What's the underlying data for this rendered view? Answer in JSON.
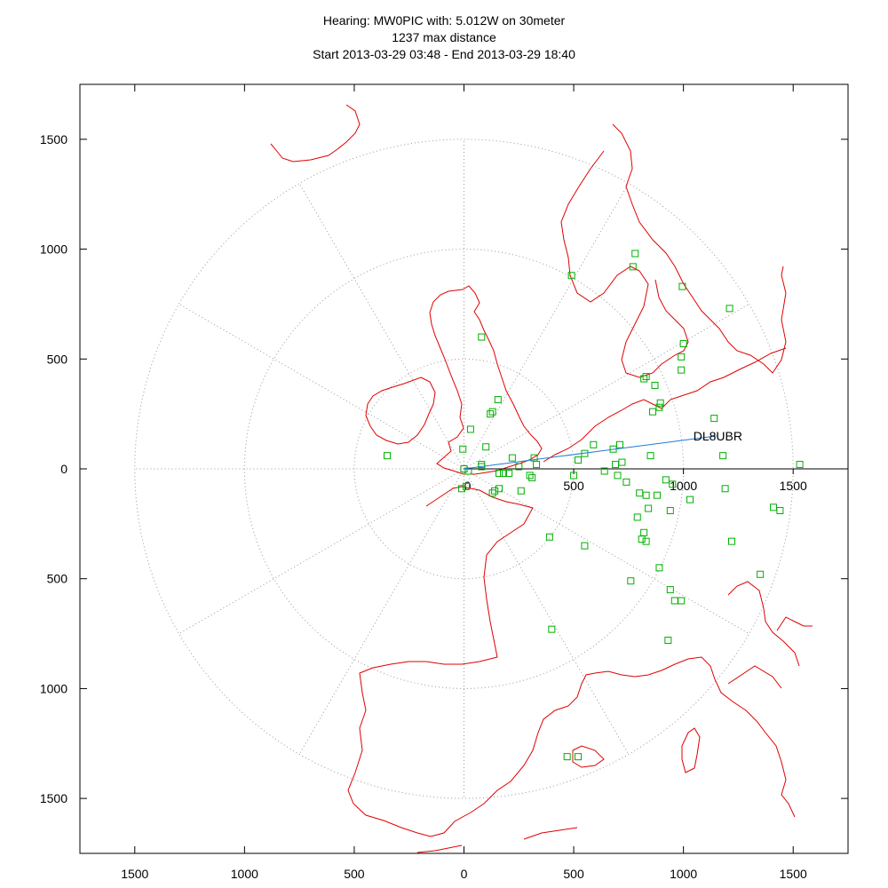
{
  "chart_data": {
    "type": "scatter",
    "title_lines": [
      "Hearing: MW0PIC with: 5.012W on 30meter",
      "1237 max distance",
      "Start 2013-03-29 03:48 - End 2013-03-29 18:40"
    ],
    "xlim": [
      -1750,
      1750
    ],
    "ylim": [
      -1750,
      1750
    ],
    "x_ticks": [
      {
        "value": -1500,
        "label": "1500"
      },
      {
        "value": -1000,
        "label": "1000"
      },
      {
        "value": -500,
        "label": "500"
      },
      {
        "value": 0,
        "label": "0"
      },
      {
        "value": 500,
        "label": "500"
      },
      {
        "value": 1000,
        "label": "1000"
      },
      {
        "value": 1500,
        "label": "1500"
      }
    ],
    "y_ticks": [
      {
        "value": 1500,
        "label": "1500"
      },
      {
        "value": 1000,
        "label": "1000"
      },
      {
        "value": 500,
        "label": "500"
      },
      {
        "value": 0,
        "label": "0"
      },
      {
        "value": -500,
        "label": "500"
      },
      {
        "value": -1000,
        "label": "1000"
      },
      {
        "value": -1500,
        "label": "1500"
      }
    ],
    "axis_ticks": [
      {
        "value": 500,
        "label": "500"
      },
      {
        "value": 1000,
        "label": "1000"
      },
      {
        "value": 1500,
        "label": "1500"
      }
    ],
    "origin_label": "0",
    "range_rings": [
      500,
      1000,
      1500
    ],
    "radial_angles_deg": [
      30,
      60,
      90,
      120,
      150,
      180,
      210,
      240,
      270,
      300,
      330
    ],
    "highlight": {
      "label": "DL8UBR",
      "x": 1150,
      "y": 150
    },
    "spots": [
      [
        0,
        0
      ],
      [
        80,
        10
      ],
      [
        20,
        -10
      ],
      [
        80,
        20
      ],
      [
        -10,
        -90
      ],
      [
        -5,
        90
      ],
      [
        100,
        100
      ],
      [
        10,
        -80
      ],
      [
        30,
        180
      ],
      [
        -350,
        60
      ],
      [
        120,
        250
      ],
      [
        130,
        260
      ],
      [
        155,
        315
      ],
      [
        80,
        600
      ],
      [
        130,
        -110
      ],
      [
        140,
        -100
      ],
      [
        160,
        -90
      ],
      [
        180,
        -20
      ],
      [
        160,
        -20
      ],
      [
        205,
        -20
      ],
      [
        220,
        50
      ],
      [
        250,
        10
      ],
      [
        260,
        -100
      ],
      [
        300,
        -30
      ],
      [
        310,
        -40
      ],
      [
        320,
        50
      ],
      [
        330,
        20
      ],
      [
        390,
        -310
      ],
      [
        400,
        -730
      ],
      [
        490,
        880
      ],
      [
        500,
        -30
      ],
      [
        520,
        40
      ],
      [
        550,
        70
      ],
      [
        550,
        -350
      ],
      [
        590,
        110
      ],
      [
        640,
        -10
      ],
      [
        680,
        90
      ],
      [
        690,
        20
      ],
      [
        710,
        110
      ],
      [
        700,
        -30
      ],
      [
        720,
        30
      ],
      [
        740,
        -60
      ],
      [
        760,
        -510
      ],
      [
        770,
        920
      ],
      [
        780,
        980
      ],
      [
        790,
        -220
      ],
      [
        800,
        -110
      ],
      [
        810,
        -320
      ],
      [
        820,
        -290
      ],
      [
        830,
        -120
      ],
      [
        820,
        410
      ],
      [
        830,
        420
      ],
      [
        830,
        -330
      ],
      [
        840,
        -180
      ],
      [
        860,
        260
      ],
      [
        850,
        60
      ],
      [
        870,
        380
      ],
      [
        880,
        -120
      ],
      [
        890,
        280
      ],
      [
        895,
        300
      ],
      [
        890,
        -450
      ],
      [
        920,
        -50
      ],
      [
        930,
        -780
      ],
      [
        940,
        -550
      ],
      [
        950,
        -70
      ],
      [
        940,
        -190
      ],
      [
        960,
        -600
      ],
      [
        990,
        -600
      ],
      [
        990,
        450
      ],
      [
        990,
        510
      ],
      [
        995,
        830
      ],
      [
        1000,
        570
      ],
      [
        1030,
        -140
      ],
      [
        1140,
        230
      ],
      [
        1180,
        60
      ],
      [
        1190,
        -90
      ],
      [
        1210,
        730
      ],
      [
        1220,
        -330
      ],
      [
        1350,
        -480
      ],
      [
        1410,
        -175
      ],
      [
        1440,
        -190
      ],
      [
        1530,
        20
      ],
      [
        520,
        -1310
      ],
      [
        470,
        -1310
      ]
    ],
    "grid": true
  }
}
